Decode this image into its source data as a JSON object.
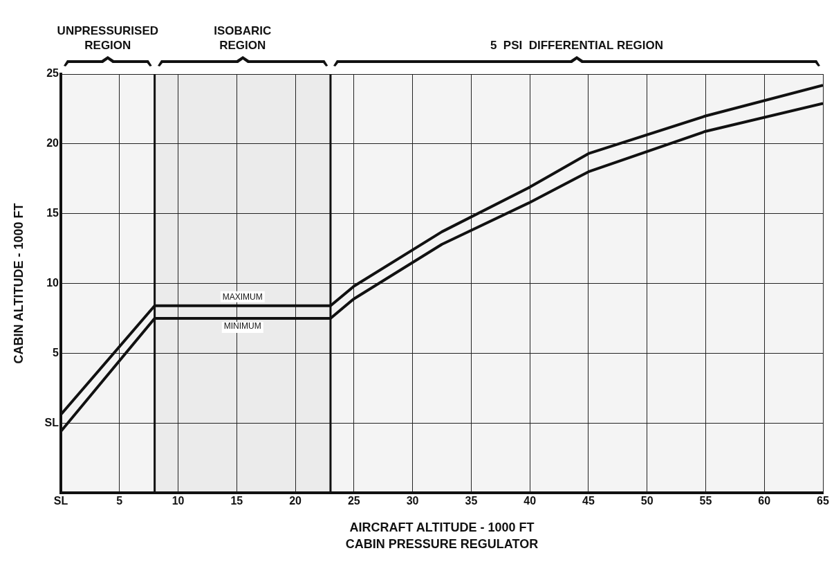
{
  "chart_data": {
    "type": "line",
    "xlabel": "AIRCRAFT ALTITUDE - 1000 FT",
    "ylabel": "CABIN ALTITUDE - 1000 FT",
    "annotations": [
      "CABIN PRESSURE REGULATOR"
    ],
    "bands": [
      {
        "axis": "x",
        "from": 0,
        "to": 8,
        "label": "UNPRESSURISED\nREGION",
        "color": "#f4f4f4"
      },
      {
        "axis": "x",
        "from": 8,
        "to": 23,
        "label": "ISOBARIC\nREGION",
        "color": "#ebebeb"
      },
      {
        "axis": "x",
        "from": 23,
        "to": 65,
        "label": "5  PSI  DIFFERENTIAL REGION",
        "color": "#f4f4f4"
      }
    ],
    "ref_lines": [
      {
        "axis": "x",
        "value": 8
      },
      {
        "axis": "x",
        "value": 23
      }
    ],
    "xlim": [
      0,
      65
    ],
    "xticks": [
      {
        "value": 0,
        "label": "SL"
      },
      5,
      10,
      15,
      20,
      25,
      30,
      35,
      40,
      45,
      50,
      55,
      60,
      65
    ],
    "ylim": [
      -5,
      25
    ],
    "yticks": [
      {
        "value": 0,
        "label": "SL"
      },
      5,
      10,
      15,
      20,
      25
    ],
    "grid": true,
    "legend": false,
    "marker": "none",
    "line_style": "solid",
    "series": [
      {
        "name": "MAXIMUM",
        "color": "#111111",
        "x": [
          0,
          8,
          23,
          25,
          32.5,
          40,
          45,
          55,
          65
        ],
        "values": [
          0.6,
          8.4,
          8.4,
          9.8,
          13.7,
          16.9,
          19.3,
          22.0,
          24.2
        ]
      },
      {
        "name": "MINIMUM",
        "color": "#111111",
        "x": [
          0,
          8,
          23,
          25,
          32.5,
          40,
          45,
          55,
          65
        ],
        "values": [
          -0.6,
          7.5,
          7.5,
          8.9,
          12.8,
          15.8,
          18.0,
          20.9,
          22.9
        ]
      }
    ]
  }
}
